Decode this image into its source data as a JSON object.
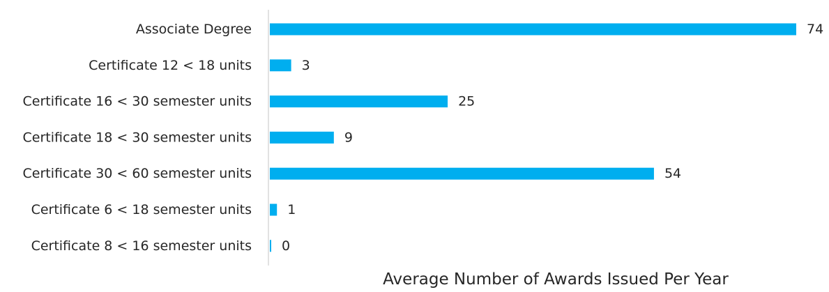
{
  "chart_data": {
    "type": "bar",
    "orientation": "horizontal",
    "categories": [
      "Associate Degree",
      "Certificate 12 < 18 units",
      "Certificate 16 < 30 semester units",
      "Certificate 18 < 30 semester units",
      "Certificate 30 < 60 semester units",
      "Certificate 6 < 18 semester units",
      "Certificate 8 < 16 semester units"
    ],
    "values": [
      74,
      3,
      25,
      9,
      54,
      1,
      0
    ],
    "data_labels": [
      "74",
      "3",
      "25",
      "9",
      "54",
      "1",
      "0"
    ],
    "title": "",
    "xlabel": "Average Number of Awards Issued Per Year",
    "ylabel": "",
    "xlim": [
      0,
      74
    ],
    "grid": false,
    "legend": "none",
    "bar_color": "#00AEEF",
    "axis_color": "#D9D9D9",
    "text_color": "#262626"
  }
}
